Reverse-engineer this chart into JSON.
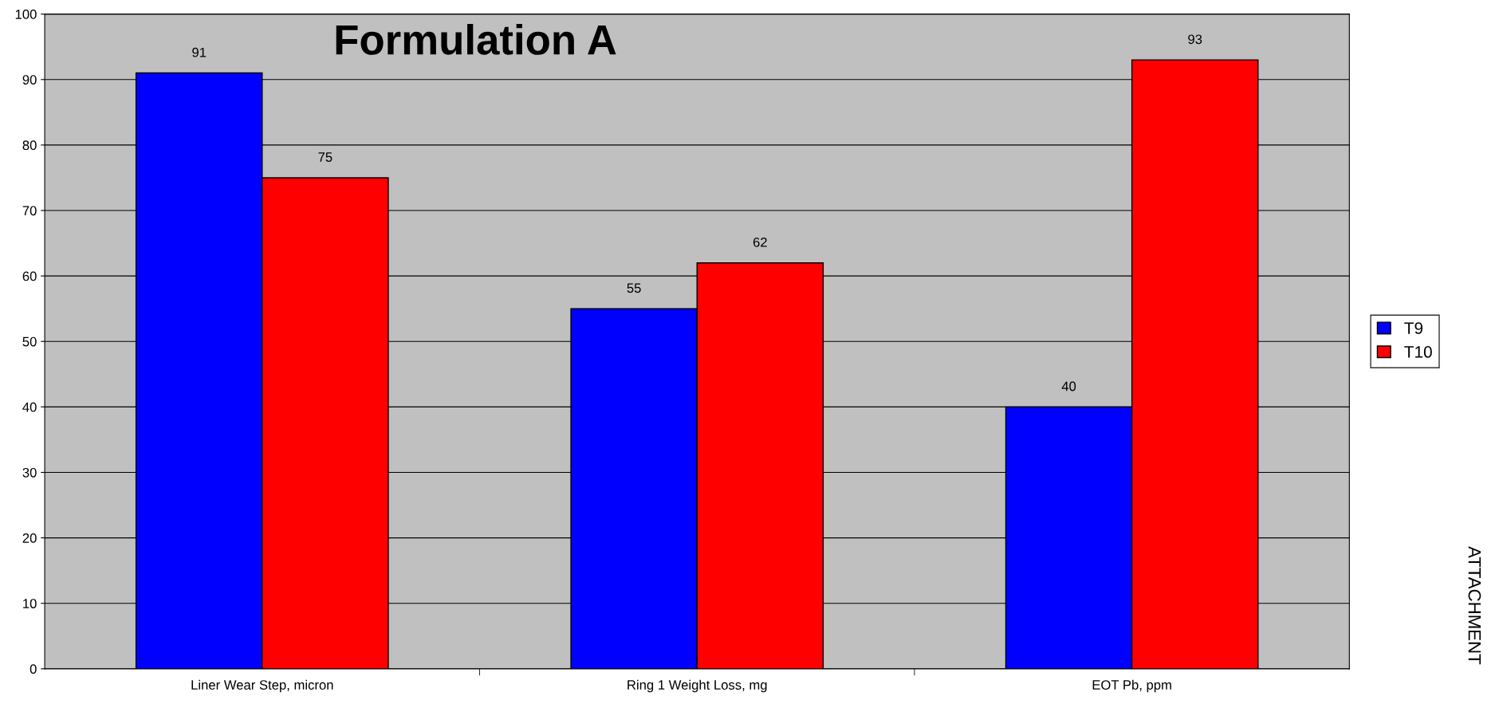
{
  "chart_data": {
    "type": "bar",
    "title": "Formulation A",
    "categories": [
      "Liner Wear Step, micron",
      "Ring 1 Weight Loss, mg",
      "EOT Pb, ppm"
    ],
    "series": [
      {
        "name": "T9",
        "color": "#0000ff",
        "values": [
          91,
          55,
          40
        ]
      },
      {
        "name": "T10",
        "color": "#ff0000",
        "values": [
          75,
          62,
          93
        ]
      }
    ],
    "ylim": [
      0,
      100
    ],
    "yticks": [
      0,
      10,
      20,
      30,
      40,
      50,
      60,
      70,
      80,
      90,
      100
    ],
    "grid": "y",
    "legend": "right",
    "data_labels": true,
    "annotations": [
      "ATTACHMENT"
    ]
  }
}
